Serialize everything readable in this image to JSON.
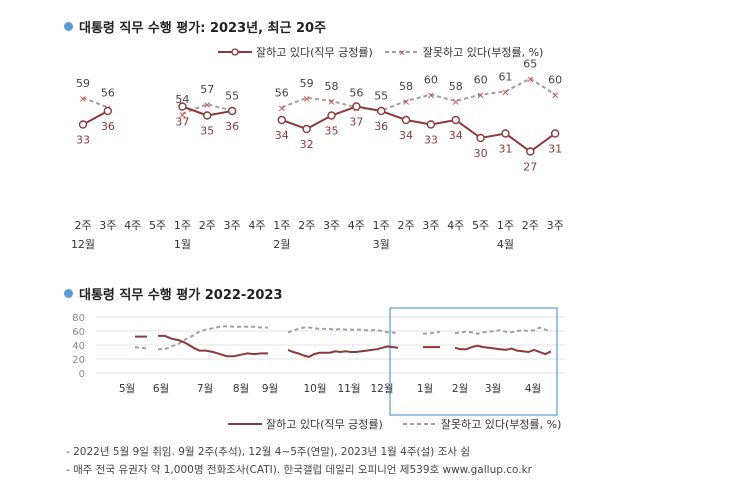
{
  "chart1": {
    "title": "대통령 직무 수행 평가: 2023년, 최근 20주",
    "legend": {
      "approve": "잘하고 있다(직무 긍정률)",
      "disapprove": "잘못하고 있다(부정률, %)"
    }
  },
  "chart2": {
    "title": "대통령 직무 수행 평가 2022-2023",
    "legend": {
      "approve": "잘하고 있다(직무 긍정률)",
      "disapprove": "잘못하고 있다(부정률, %)"
    }
  },
  "notes": [
    "- 2022년 5월 9일 취임. 9월 2주(추석), 12월 4~5주(연말), 2023년 1월 4주(설) 조사 쉼",
    "- 매주 전국 유권자 약 1,000명 전화조사(CATI). 한국갤럽 데일리 오피니언 제539호 www.gallup.co.kr"
  ],
  "colors": {
    "approve": "#8b3a3a",
    "disapprove": "#a0a0a0",
    "highlight": "#5b9bd5",
    "bullet": "#5b9bd5"
  },
  "chart_data": [
    {
      "type": "line",
      "title": "대통령 직무 수행 평가: 2023년, 최근 20주",
      "x_week": [
        "2주",
        "3주",
        "4주",
        "5주",
        "1주",
        "2주",
        "3주",
        "4주",
        "1주",
        "2주",
        "3주",
        "4주",
        "1주",
        "2주",
        "3주",
        "4주",
        "5주",
        "1주",
        "2주",
        "3주"
      ],
      "x_month": [
        "12월",
        "",
        "",
        "",
        "1월",
        "",
        "",
        "",
        "2월",
        "",
        "",
        "",
        "3월",
        "",
        "",
        "",
        "",
        "4월",
        "",
        ""
      ],
      "series": [
        {
          "name": "잘하고 있다(직무 긍정률)",
          "values": [
            33,
            36,
            null,
            null,
            37,
            35,
            36,
            null,
            34,
            32,
            35,
            37,
            36,
            34,
            33,
            34,
            30,
            31,
            27,
            31
          ]
        },
        {
          "name": "잘못하고 있다(부정률, %)",
          "values": [
            59,
            56,
            null,
            null,
            54,
            57,
            55,
            null,
            56,
            59,
            58,
            56,
            55,
            58,
            60,
            58,
            60,
            61,
            65,
            60
          ]
        }
      ]
    },
    {
      "type": "line",
      "title": "대통령 직무 수행 평가 2022-2023",
      "x_ticks": [
        "5월",
        "6월",
        "7월",
        "8월",
        "9월",
        "10월",
        "11월",
        "12월",
        "1월",
        "2월",
        "3월",
        "4월"
      ],
      "ylim": [
        0,
        80
      ],
      "y_ticks": [
        0,
        20,
        40,
        60,
        80
      ],
      "series": [
        {
          "name": "잘하고 있다(직무 긍정률)",
          "segments": [
            [
              52,
              52
            ],
            [
              53,
              53,
              49,
              47,
              43,
              37,
              32,
              32,
              30,
              27,
              24,
              24,
              26,
              28,
              27,
              28,
              28
            ],
            [
              33,
              30,
              28,
              25,
              23,
              27,
              29,
              29,
              29,
              31,
              30,
              31,
              30,
              30,
              31,
              32,
              33,
              34,
              36,
              38,
              37,
              36
            ],
            [
              37,
              37,
              37
            ],
            [
              36,
              34,
              34,
              37,
              39,
              37,
              36,
              35,
              34,
              33,
              35,
              32,
              31,
              30,
              33,
              30,
              27,
              31
            ]
          ]
        },
        {
          "name": "잘못하고 있다(부정률, %)",
          "segments": [
            [
              37,
              35
            ],
            [
              34,
              34,
              38,
              42,
              48,
              53,
              59,
              62,
              64,
              66,
              67,
              66,
              66,
              66,
              66,
              65,
              65
            ],
            [
              58,
              61,
              63,
              65,
              65,
              64,
              63,
              63,
              63,
              62,
              63,
              62,
              62,
              62,
              62,
              61,
              61,
              61,
              60,
              58,
              58,
              56
            ],
            [
              56,
              57,
              59
            ],
            [
              57,
              58,
              59,
              58,
              56,
              58,
              59,
              60,
              61,
              59,
              58,
              60,
              61,
              60,
              61,
              65,
              62,
              60
            ]
          ]
        }
      ]
    }
  ]
}
